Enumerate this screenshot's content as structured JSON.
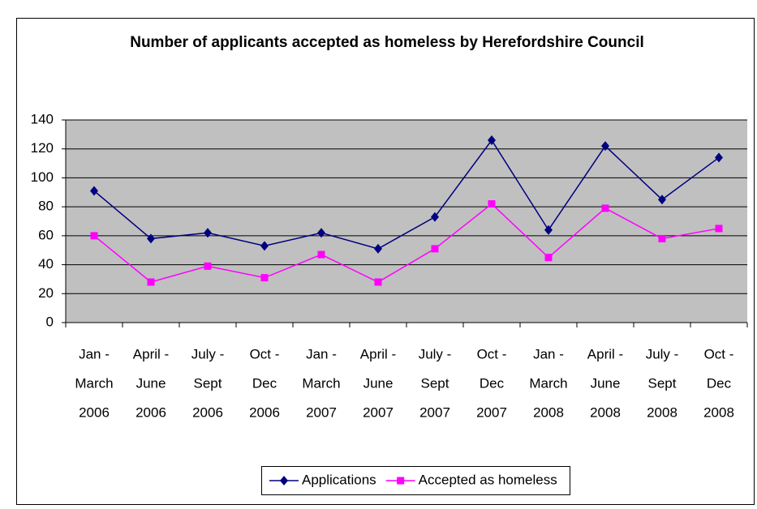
{
  "chart_data": {
    "type": "line",
    "title": "Number of applicants accepted as homeless by Herefordshire Council",
    "categories": [
      [
        "Jan -",
        "March",
        "2006"
      ],
      [
        "April -",
        "June",
        "2006"
      ],
      [
        "July -",
        "Sept",
        "2006"
      ],
      [
        "Oct -",
        "Dec",
        "2006"
      ],
      [
        "Jan -",
        "March",
        "2007"
      ],
      [
        "April -",
        "June",
        "2007"
      ],
      [
        "July -",
        "Sept",
        "2007"
      ],
      [
        "Oct -",
        "Dec",
        "2007"
      ],
      [
        "Jan -",
        "March",
        "2008"
      ],
      [
        "April -",
        "June",
        "2008"
      ],
      [
        "July -",
        "Sept",
        "2008"
      ],
      [
        "Oct -",
        "Dec",
        "2008"
      ]
    ],
    "series": [
      {
        "name": "Applications",
        "color": "#000080",
        "marker": "diamond",
        "values": [
          91,
          58,
          62,
          53,
          62,
          51,
          73,
          126,
          64,
          122,
          85,
          114
        ]
      },
      {
        "name": "Accepted as homeless",
        "color": "#ff00ff",
        "marker": "square",
        "values": [
          60,
          28,
          39,
          31,
          47,
          28,
          51,
          82,
          45,
          79,
          58,
          65
        ]
      }
    ],
    "ylim": [
      0,
      140
    ],
    "yticks": [
      0,
      20,
      40,
      60,
      80,
      100,
      120,
      140
    ],
    "grid": true,
    "plot_background": "#c0c0c0",
    "legend": "bottom"
  }
}
